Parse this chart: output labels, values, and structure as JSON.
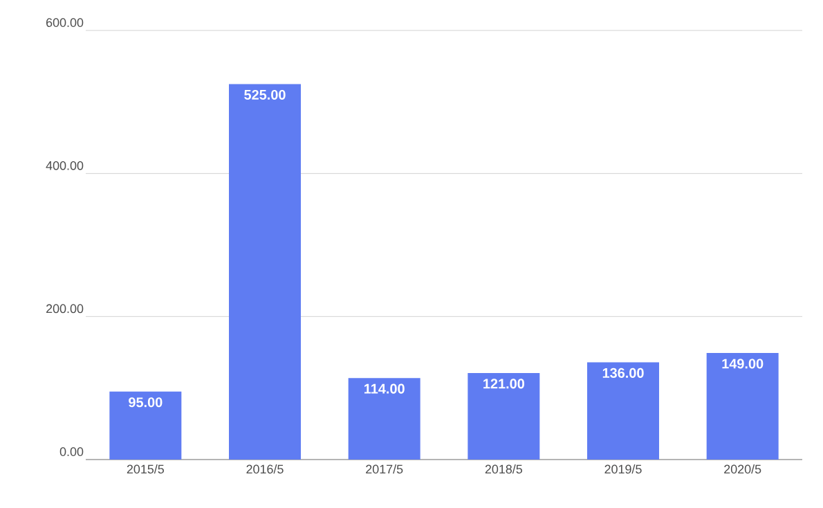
{
  "chart_data": {
    "type": "bar",
    "categories": [
      "2015/5",
      "2016/5",
      "2017/5",
      "2018/5",
      "2019/5",
      "2020/5"
    ],
    "values": [
      95,
      525,
      114,
      121,
      136,
      149
    ],
    "value_labels": [
      "95.00",
      "525.00",
      "114.00",
      "121.00",
      "136.00",
      "149.00"
    ],
    "color": "#5f7cf2",
    "ylim": [
      0,
      600
    ],
    "yticks": [
      {
        "value": 0,
        "label": "0.00"
      },
      {
        "value": 200,
        "label": "200.00"
      },
      {
        "value": 400,
        "label": "400.00"
      },
      {
        "value": 600,
        "label": "600.00"
      }
    ],
    "grid": "y"
  }
}
